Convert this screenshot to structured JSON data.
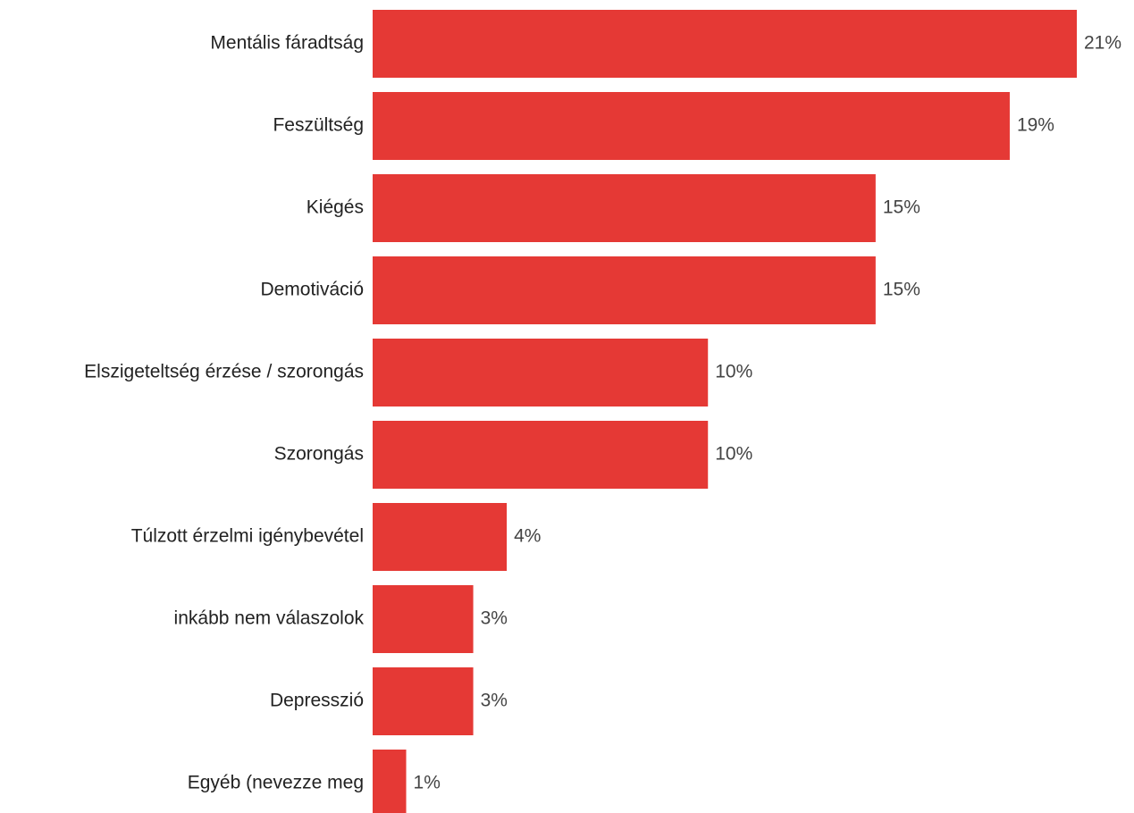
{
  "chart_data": {
    "type": "bar",
    "orientation": "horizontal",
    "color": "#e53935",
    "categories": [
      "Mentális fáradtság",
      "Feszültség",
      "Kiégés",
      "Demotiváció",
      "Elszigeteltség érzése / szorongás",
      "Szorongás",
      "Túlzott érzelmi igénybevétel",
      "inkább nem válaszolok",
      "Depresszió",
      "Egyéb (nevezze meg"
    ],
    "values": [
      21,
      19,
      15,
      15,
      10,
      10,
      4,
      3,
      3,
      1
    ],
    "value_labels": [
      "21%",
      "19%",
      "15%",
      "15%",
      "10%",
      "10%",
      "4%",
      "3%",
      "3%",
      "1%"
    ]
  }
}
